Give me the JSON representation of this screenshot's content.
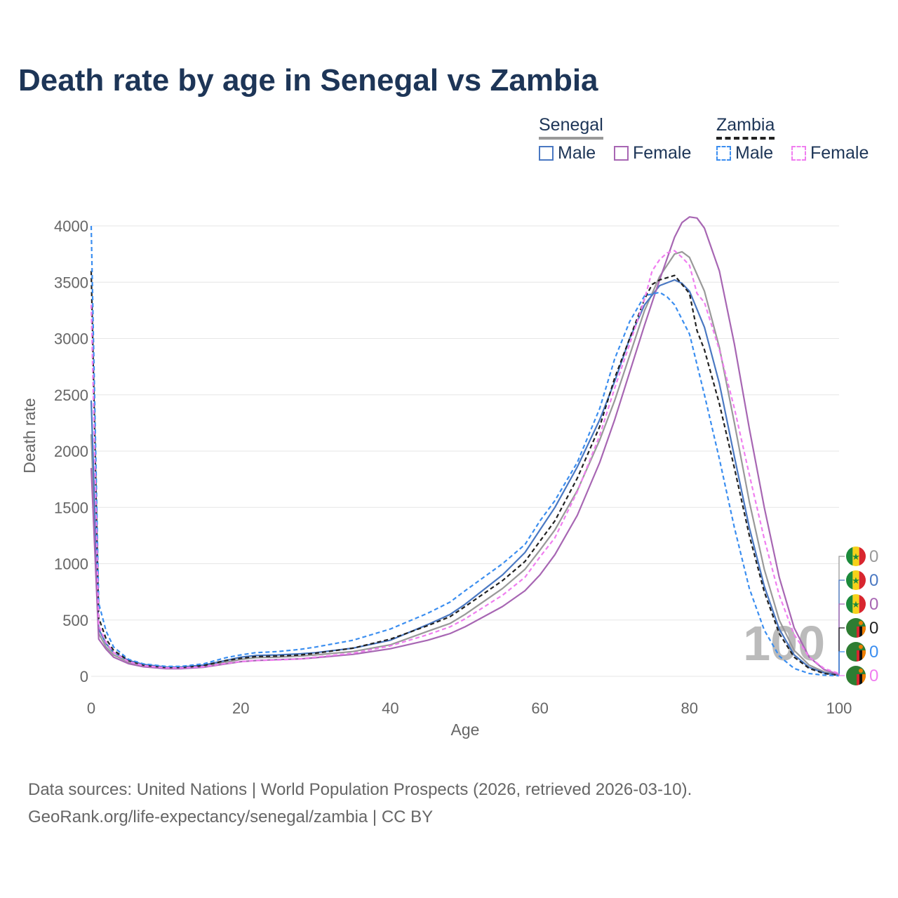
{
  "title": "Death rate by age in Senegal vs Zambia",
  "legend": {
    "countries": [
      {
        "name": "Senegal",
        "bar_color": "#999999",
        "bar_style": "solid"
      },
      {
        "name": "Zambia",
        "bar_color": "#222222",
        "bar_style": "dashed"
      }
    ],
    "items": [
      {
        "label": "Male",
        "color": "#4a78c2",
        "style": "solid"
      },
      {
        "label": "Female",
        "color": "#a766b3",
        "style": "solid"
      },
      {
        "label": "Male",
        "color": "#3b8ef0",
        "style": "dashed"
      },
      {
        "label": "Female",
        "color": "#f07ef0",
        "style": "dashed"
      }
    ]
  },
  "chart_data": {
    "type": "line",
    "xlabel": "Age",
    "ylabel": "Death rate",
    "xlim": [
      0,
      100
    ],
    "ylim": [
      0,
      4000
    ],
    "xticks": [
      0,
      20,
      40,
      60,
      80,
      100
    ],
    "yticks": [
      0,
      500,
      1000,
      1500,
      2000,
      2500,
      3000,
      3500,
      4000
    ],
    "grid": true,
    "current_age_label": "100",
    "series": [
      {
        "name": "Senegal Total",
        "color": "#999999",
        "dash": false,
        "x": [
          0,
          1,
          2,
          3,
          5,
          7,
          10,
          12,
          15,
          18,
          20,
          22,
          25,
          28,
          30,
          35,
          40,
          45,
          48,
          50,
          55,
          58,
          60,
          62,
          65,
          68,
          70,
          72,
          74,
          76,
          78,
          79,
          80,
          82,
          84,
          86,
          88,
          90,
          92,
          94,
          96,
          98,
          100
        ],
        "y": [
          2150,
          380,
          260,
          190,
          125,
          95,
          75,
          75,
          90,
          125,
          150,
          165,
          170,
          180,
          190,
          220,
          280,
          400,
          470,
          550,
          780,
          950,
          1120,
          1300,
          1650,
          2100,
          2450,
          2850,
          3250,
          3550,
          3750,
          3770,
          3720,
          3420,
          2920,
          2250,
          1550,
          950,
          500,
          230,
          100,
          40,
          10
        ],
        "end_value": "0"
      },
      {
        "name": "Senegal Male",
        "color": "#4a78c2",
        "dash": false,
        "x": [
          0,
          1,
          2,
          3,
          5,
          7,
          10,
          12,
          15,
          18,
          20,
          22,
          25,
          28,
          30,
          35,
          40,
          45,
          48,
          50,
          55,
          58,
          60,
          62,
          65,
          68,
          70,
          72,
          74,
          76,
          78,
          79,
          80,
          82,
          84,
          86,
          88,
          90,
          92,
          94,
          96,
          98,
          100
        ],
        "y": [
          2450,
          420,
          290,
          210,
          140,
          105,
          82,
          82,
          100,
          140,
          170,
          185,
          190,
          200,
          210,
          250,
          320,
          460,
          550,
          640,
          900,
          1100,
          1300,
          1500,
          1860,
          2280,
          2620,
          3000,
          3300,
          3470,
          3520,
          3490,
          3420,
          3100,
          2600,
          1950,
          1320,
          800,
          420,
          190,
          80,
          30,
          10
        ],
        "end_value": "0"
      },
      {
        "name": "Senegal Female",
        "color": "#a766b3",
        "dash": false,
        "x": [
          0,
          1,
          2,
          3,
          5,
          7,
          10,
          12,
          15,
          18,
          20,
          22,
          25,
          28,
          30,
          35,
          40,
          45,
          48,
          50,
          55,
          58,
          60,
          62,
          65,
          68,
          70,
          72,
          74,
          76,
          78,
          79,
          80,
          81,
          82,
          84,
          86,
          88,
          90,
          92,
          94,
          96,
          98,
          100
        ],
        "y": [
          1850,
          330,
          240,
          170,
          112,
          85,
          68,
          68,
          80,
          110,
          130,
          140,
          148,
          155,
          165,
          195,
          245,
          320,
          380,
          440,
          620,
          760,
          900,
          1080,
          1430,
          1900,
          2280,
          2700,
          3120,
          3520,
          3900,
          4030,
          4080,
          4070,
          3980,
          3600,
          2950,
          2200,
          1500,
          880,
          430,
          170,
          60,
          15
        ],
        "end_value": "0"
      },
      {
        "name": "Zambia Total",
        "color": "#222222",
        "dash": true,
        "x": [
          0,
          1,
          2,
          3,
          5,
          7,
          10,
          12,
          15,
          18,
          20,
          22,
          25,
          28,
          30,
          35,
          40,
          45,
          48,
          50,
          55,
          58,
          60,
          62,
          65,
          68,
          70,
          72,
          74,
          75,
          76,
          78,
          80,
          81,
          82,
          84,
          86,
          88,
          90,
          92,
          94,
          96,
          98,
          100
        ],
        "y": [
          3600,
          520,
          330,
          230,
          140,
          100,
          80,
          80,
          95,
          140,
          160,
          175,
          180,
          190,
          205,
          250,
          330,
          450,
          530,
          620,
          850,
          1020,
          1200,
          1380,
          1760,
          2220,
          2650,
          3000,
          3350,
          3480,
          3520,
          3560,
          3400,
          3070,
          2900,
          2420,
          1850,
          1250,
          750,
          380,
          170,
          70,
          25,
          8
        ],
        "end_value": "0"
      },
      {
        "name": "Zambia Male",
        "color": "#3b8ef0",
        "dash": true,
        "x": [
          0,
          1,
          2,
          3,
          5,
          7,
          10,
          12,
          15,
          18,
          20,
          22,
          25,
          28,
          30,
          35,
          40,
          45,
          48,
          50,
          55,
          58,
          60,
          62,
          65,
          68,
          70,
          72,
          74,
          76,
          77,
          78,
          80,
          82,
          84,
          86,
          88,
          90,
          92,
          94,
          96,
          98,
          100
        ],
        "y": [
          4000,
          650,
          400,
          260,
          150,
          110,
          88,
          88,
          110,
          165,
          190,
          210,
          220,
          240,
          260,
          320,
          420,
          560,
          660,
          760,
          1000,
          1170,
          1380,
          1560,
          1900,
          2380,
          2820,
          3150,
          3380,
          3410,
          3370,
          3300,
          3040,
          2500,
          1930,
          1320,
          780,
          410,
          180,
          70,
          25,
          10,
          5
        ],
        "end_value": "0"
      },
      {
        "name": "Zambia Female",
        "color": "#f07ef0",
        "dash": true,
        "x": [
          0,
          1,
          2,
          3,
          5,
          7,
          10,
          12,
          15,
          18,
          20,
          22,
          25,
          28,
          30,
          35,
          40,
          45,
          48,
          50,
          55,
          58,
          60,
          62,
          65,
          68,
          70,
          72,
          74,
          75,
          76,
          77,
          78,
          79,
          80,
          81,
          82,
          84,
          86,
          88,
          90,
          92,
          94,
          96,
          98,
          100
        ],
        "y": [
          3300,
          450,
          300,
          210,
          130,
          95,
          75,
          75,
          85,
          115,
          130,
          140,
          145,
          155,
          170,
          205,
          270,
          370,
          440,
          510,
          720,
          880,
          1060,
          1230,
          1640,
          2140,
          2560,
          2950,
          3350,
          3600,
          3700,
          3760,
          3780,
          3720,
          3650,
          3400,
          3320,
          2900,
          2380,
          1790,
          1220,
          720,
          370,
          170,
          70,
          25
        ],
        "end_value": "0"
      }
    ]
  },
  "source": {
    "line1": "Data sources: United Nations | World Population Prospects (2026, retrieved 2026-03-10).",
    "line2": "GeoRank.org/life-expectancy/senegal/zambia | CC BY"
  }
}
